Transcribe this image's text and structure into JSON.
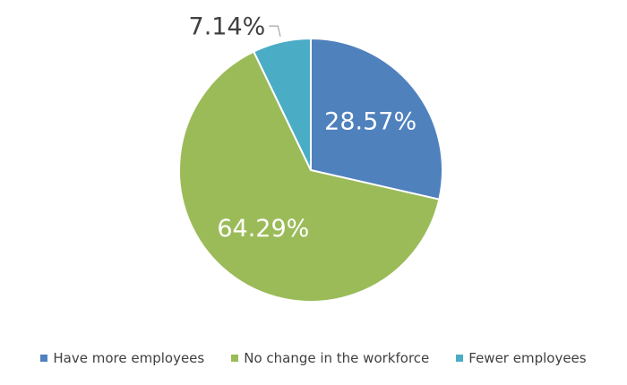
{
  "chart_data": {
    "type": "pie",
    "title": "",
    "slices": [
      {
        "label": "Have more employees",
        "value": 28.57,
        "display": "28.57%",
        "color": "#4f81bd"
      },
      {
        "label": "No change in the workforce",
        "value": 64.29,
        "display": "64.29%",
        "color": "#9bbb59"
      },
      {
        "label": "Fewer employees",
        "value": 7.14,
        "display": "7.14%",
        "color": "#4bacc6"
      }
    ],
    "legend_position": "bottom",
    "slice_border_color": "#ffffff",
    "inner_label_color": "#ffffff",
    "outer_label_color": "#404040"
  }
}
